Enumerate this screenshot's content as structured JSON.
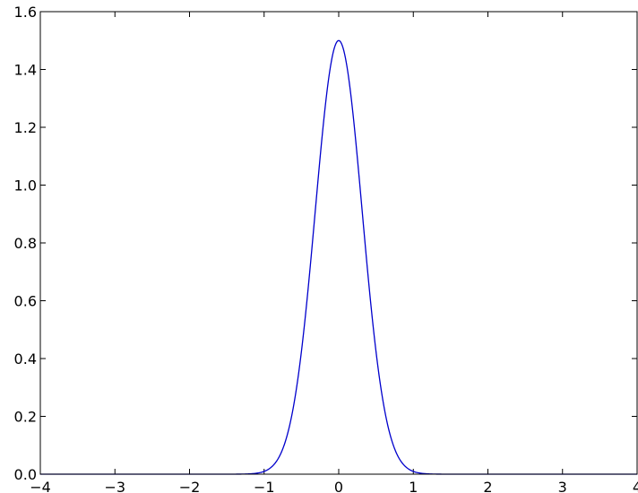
{
  "chart_data": {
    "type": "line",
    "title": "",
    "xlabel": "",
    "ylabel": "",
    "xlim": [
      -4,
      4
    ],
    "ylim": [
      0.0,
      1.6
    ],
    "grid": false,
    "x_ticks": [
      -4,
      -3,
      -2,
      -1,
      0,
      1,
      2,
      3,
      4
    ],
    "x_tick_labels": [
      "−4",
      "−3",
      "−2",
      "−1",
      "0",
      "1",
      "2",
      "3",
      "4"
    ],
    "y_ticks": [
      0.0,
      0.2,
      0.4,
      0.6,
      0.8,
      1.0,
      1.2,
      1.4,
      1.6
    ],
    "y_tick_labels": [
      "0.0",
      "0.2",
      "0.4",
      "0.6",
      "0.8",
      "1.0",
      "1.2",
      "1.4",
      "1.6"
    ],
    "series": [
      {
        "color": "#0000cc",
        "x": [
          -4.0,
          -3.0,
          -2.0,
          -1.2,
          -1.0,
          -0.9,
          -0.8,
          -0.7,
          -0.6,
          -0.5,
          -0.4,
          -0.3,
          -0.2,
          -0.1,
          0.0,
          0.1,
          0.2,
          0.3,
          0.4,
          0.5,
          0.6,
          0.7,
          0.8,
          0.9,
          1.0,
          1.2,
          2.0,
          3.0,
          4.0
        ],
        "y": [
          0.0,
          0.0,
          0.0,
          0.0,
          0.0,
          0.003,
          0.014,
          0.047,
          0.131,
          0.302,
          0.587,
          0.952,
          1.294,
          1.471,
          1.5,
          1.471,
          1.294,
          0.952,
          0.587,
          0.302,
          0.131,
          0.047,
          0.014,
          0.003,
          0.0,
          0.0,
          0.0,
          0.0,
          0.0
        ]
      }
    ]
  }
}
